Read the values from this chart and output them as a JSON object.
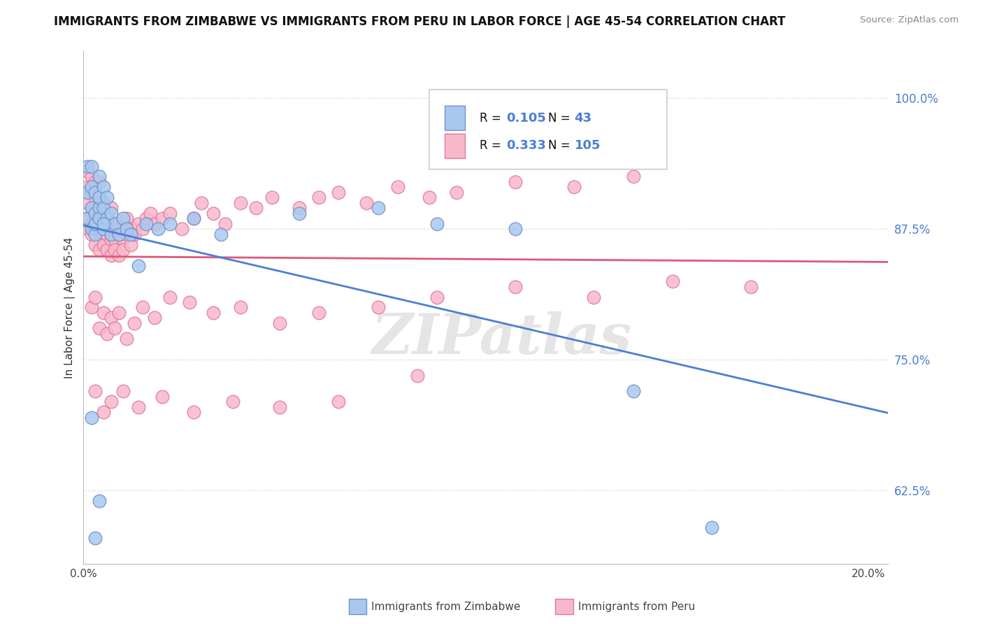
{
  "title": "IMMIGRANTS FROM ZIMBABWE VS IMMIGRANTS FROM PERU IN LABOR FORCE | AGE 45-54 CORRELATION CHART",
  "source": "Source: ZipAtlas.com",
  "ylabel": "In Labor Force | Age 45-54",
  "xlim": [
    0.0,
    0.205
  ],
  "ylim": [
    0.555,
    1.045
  ],
  "xtick_positions": [
    0.0,
    0.05,
    0.1,
    0.15,
    0.2
  ],
  "xticklabels": [
    "0.0%",
    "",
    "",
    "",
    "20.0%"
  ],
  "ytick_right_labels": [
    "100.0%",
    "87.5%",
    "75.0%",
    "62.5%"
  ],
  "ytick_right_values": [
    1.0,
    0.875,
    0.75,
    0.625
  ],
  "zimbabwe_color": "#a8c8f0",
  "peru_color": "#f8b8cc",
  "zimbabwe_edge": "#7090c8",
  "peru_edge": "#e07898",
  "trend_blue": "#4a7fd4",
  "trend_pink": "#e05878",
  "R_zimbabwe": 0.105,
  "N_zimbabwe": 43,
  "R_peru": 0.333,
  "N_peru": 105,
  "legend_label_zimbabwe": "Immigrants from Zimbabwe",
  "legend_label_peru": "Immigrants from Peru",
  "watermark": "ZIPatlas",
  "zimbabwe_x": [
    0.001,
    0.001,
    0.001,
    0.002,
    0.002,
    0.002,
    0.002,
    0.003,
    0.003,
    0.003,
    0.003,
    0.004,
    0.004,
    0.004,
    0.004,
    0.005,
    0.005,
    0.005,
    0.006,
    0.006,
    0.007,
    0.007,
    0.008,
    0.009,
    0.01,
    0.011,
    0.012,
    0.014,
    0.016,
    0.019,
    0.022,
    0.028,
    0.035,
    0.055,
    0.075,
    0.09,
    0.11,
    0.14,
    0.16,
    0.002,
    0.003,
    0.004,
    0.005
  ],
  "zimbabwe_y": [
    0.885,
    0.91,
    0.935,
    0.875,
    0.895,
    0.915,
    0.935,
    0.87,
    0.89,
    0.91,
    0.88,
    0.895,
    0.885,
    0.905,
    0.925,
    0.875,
    0.895,
    0.915,
    0.885,
    0.905,
    0.87,
    0.89,
    0.88,
    0.87,
    0.885,
    0.875,
    0.87,
    0.84,
    0.88,
    0.875,
    0.88,
    0.885,
    0.87,
    0.89,
    0.895,
    0.88,
    0.875,
    0.72,
    0.59,
    0.695,
    0.58,
    0.615,
    0.88
  ],
  "peru_x": [
    0.001,
    0.001,
    0.001,
    0.001,
    0.001,
    0.002,
    0.002,
    0.002,
    0.002,
    0.002,
    0.003,
    0.003,
    0.003,
    0.003,
    0.003,
    0.004,
    0.004,
    0.004,
    0.004,
    0.004,
    0.005,
    0.005,
    0.005,
    0.005,
    0.006,
    0.006,
    0.006,
    0.006,
    0.007,
    0.007,
    0.007,
    0.007,
    0.008,
    0.008,
    0.008,
    0.009,
    0.009,
    0.01,
    0.01,
    0.01,
    0.011,
    0.011,
    0.012,
    0.012,
    0.013,
    0.014,
    0.015,
    0.016,
    0.017,
    0.018,
    0.02,
    0.022,
    0.025,
    0.028,
    0.03,
    0.033,
    0.036,
    0.04,
    0.044,
    0.048,
    0.055,
    0.06,
    0.065,
    0.072,
    0.08,
    0.088,
    0.095,
    0.11,
    0.125,
    0.14,
    0.002,
    0.003,
    0.004,
    0.005,
    0.006,
    0.007,
    0.008,
    0.009,
    0.011,
    0.013,
    0.015,
    0.018,
    0.022,
    0.027,
    0.033,
    0.04,
    0.05,
    0.06,
    0.075,
    0.09,
    0.11,
    0.13,
    0.15,
    0.17,
    0.003,
    0.005,
    0.007,
    0.01,
    0.014,
    0.02,
    0.028,
    0.038,
    0.05,
    0.065,
    0.085
  ],
  "peru_y": [
    0.885,
    0.9,
    0.915,
    0.93,
    0.875,
    0.88,
    0.895,
    0.91,
    0.925,
    0.87,
    0.875,
    0.89,
    0.905,
    0.92,
    0.86,
    0.875,
    0.89,
    0.905,
    0.92,
    0.855,
    0.87,
    0.885,
    0.9,
    0.86,
    0.875,
    0.89,
    0.855,
    0.87,
    0.865,
    0.88,
    0.895,
    0.85,
    0.865,
    0.88,
    0.855,
    0.87,
    0.85,
    0.865,
    0.88,
    0.855,
    0.87,
    0.885,
    0.86,
    0.875,
    0.87,
    0.88,
    0.875,
    0.885,
    0.89,
    0.88,
    0.885,
    0.89,
    0.875,
    0.885,
    0.9,
    0.89,
    0.88,
    0.9,
    0.895,
    0.905,
    0.895,
    0.905,
    0.91,
    0.9,
    0.915,
    0.905,
    0.91,
    0.92,
    0.915,
    0.925,
    0.8,
    0.81,
    0.78,
    0.795,
    0.775,
    0.79,
    0.78,
    0.795,
    0.77,
    0.785,
    0.8,
    0.79,
    0.81,
    0.805,
    0.795,
    0.8,
    0.785,
    0.795,
    0.8,
    0.81,
    0.82,
    0.81,
    0.825,
    0.82,
    0.72,
    0.7,
    0.71,
    0.72,
    0.705,
    0.715,
    0.7,
    0.71,
    0.705,
    0.71,
    0.735
  ]
}
